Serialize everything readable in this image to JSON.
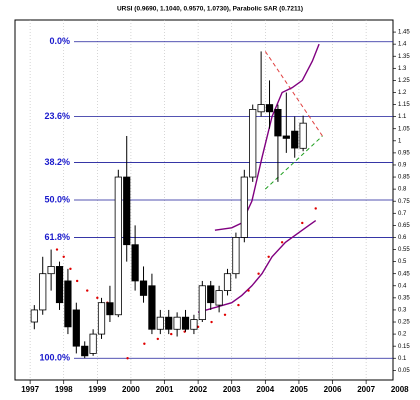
{
  "chart_data": {
    "type": "candlestick",
    "title": "URSI (0.9690, 1.1040, 0.9570, 1.0730), Parabolic SAR (0.7211)",
    "xlim": [
      1996.55,
      2007.8
    ],
    "xticks": [
      1997,
      1998,
      1999,
      2000,
      2001,
      2002,
      2003,
      2004,
      2005,
      2006,
      2007,
      2008
    ],
    "ylim": [
      0.01,
      1.5
    ],
    "yticks": [
      0.05,
      0.1,
      0.15,
      0.2,
      0.25,
      0.3,
      0.35,
      0.4,
      0.45,
      0.5,
      0.55,
      0.6,
      0.65,
      0.7,
      0.75,
      0.8,
      0.85,
      0.9,
      0.95,
      1.0,
      1.05,
      1.1,
      1.15,
      1.2,
      1.25,
      1.3,
      1.35,
      1.4,
      1.45
    ],
    "grid": true,
    "x": [
      1997.125,
      1997.375,
      1997.625,
      1997.875,
      1998.125,
      1998.375,
      1998.625,
      1998.875,
      1999.125,
      1999.375,
      1999.625,
      1999.875,
      2000.125,
      2000.375,
      2000.625,
      2000.875,
      2001.125,
      2001.375,
      2001.625,
      2001.875,
      2002.125,
      2002.375,
      2002.625,
      2002.875,
      2003.125,
      2003.375,
      2003.625,
      2003.875,
      2004.125,
      2004.375,
      2004.625,
      2004.875,
      2005.125
    ],
    "open": [
      0.25,
      0.3,
      0.45,
      0.48,
      0.42,
      0.3,
      0.15,
      0.12,
      0.2,
      0.33,
      0.28,
      0.85,
      0.57,
      0.42,
      0.4,
      0.22,
      0.27,
      0.22,
      0.27,
      0.22,
      0.26,
      0.4,
      0.32,
      0.38,
      0.45,
      0.6,
      0.85,
      1.12,
      1.15,
      1.13,
      1.02,
      1.04,
      0.969
    ],
    "high": [
      0.32,
      0.52,
      0.55,
      0.5,
      0.47,
      0.33,
      0.17,
      0.22,
      0.35,
      0.4,
      0.88,
      1.02,
      0.65,
      0.48,
      0.45,
      0.3,
      0.3,
      0.29,
      0.3,
      0.28,
      0.42,
      0.42,
      0.4,
      0.47,
      0.62,
      0.88,
      1.15,
      1.37,
      1.25,
      1.15,
      1.2,
      1.1,
      1.104
    ],
    "low": [
      0.22,
      0.28,
      0.38,
      0.3,
      0.2,
      0.12,
      0.1,
      0.11,
      0.18,
      0.25,
      0.27,
      0.5,
      0.38,
      0.33,
      0.2,
      0.2,
      0.2,
      0.19,
      0.21,
      0.2,
      0.25,
      0.3,
      0.29,
      0.36,
      0.43,
      0.58,
      0.83,
      1.1,
      1.05,
      0.83,
      0.95,
      0.93,
      0.957
    ],
    "close": [
      0.3,
      0.45,
      0.48,
      0.33,
      0.23,
      0.15,
      0.11,
      0.2,
      0.33,
      0.28,
      0.85,
      0.57,
      0.42,
      0.36,
      0.22,
      0.27,
      0.22,
      0.27,
      0.22,
      0.26,
      0.4,
      0.33,
      0.38,
      0.45,
      0.6,
      0.85,
      1.13,
      1.15,
      1.12,
      1.02,
      1.01,
      0.97,
      1.073
    ],
    "lines": [
      {
        "color": "#800080",
        "x": [
          2002.5,
          2003.0,
          2003.3,
          2003.6,
          2003.9,
          2004.2,
          2004.5,
          2004.8,
          2005.1,
          2005.4,
          2005.6
        ],
        "values": [
          0.63,
          0.64,
          0.66,
          0.75,
          0.93,
          1.1,
          1.2,
          1.22,
          1.25,
          1.33,
          1.4
        ]
      },
      {
        "color": "#800080",
        "x": [
          2002.0,
          2002.5,
          2003.0,
          2003.3,
          2003.6,
          2003.9,
          2004.2,
          2004.6,
          2005.0,
          2005.3,
          2005.5
        ],
        "values": [
          0.29,
          0.31,
          0.33,
          0.36,
          0.4,
          0.45,
          0.52,
          0.58,
          0.62,
          0.65,
          0.67
        ]
      }
    ],
    "sar": {
      "color": "#e00000",
      "x": [
        1997.8,
        1998.0,
        1998.2,
        1998.4,
        1998.7,
        1999.0,
        1999.3,
        1999.9,
        2000.4,
        2000.8,
        2001.2,
        2001.6,
        2002.0,
        2002.4,
        2002.8,
        2003.2,
        2003.5,
        2003.8,
        2004.1,
        2004.5,
        2005.1,
        2005.5
      ],
      "values": [
        0.55,
        0.52,
        0.47,
        0.42,
        0.38,
        0.35,
        0.33,
        0.1,
        0.16,
        0.18,
        0.2,
        0.21,
        0.23,
        0.25,
        0.28,
        0.32,
        0.38,
        0.45,
        0.52,
        0.58,
        0.66,
        0.72
      ]
    },
    "trendlines": [
      {
        "color": "#e04040",
        "x": [
          2004.0,
          2005.7
        ],
        "values": [
          1.37,
          1.02
        ]
      },
      {
        "color": "#20a020",
        "x": [
          2004.0,
          2005.7
        ],
        "values": [
          0.8,
          1.02
        ]
      }
    ],
    "fib_levels": [
      {
        "label": "0.0%",
        "value": 1.41
      },
      {
        "label": "23.6%",
        "value": 1.101
      },
      {
        "label": "38.2%",
        "value": 0.91
      },
      {
        "label": "50.0%",
        "value": 0.755
      },
      {
        "label": "61.8%",
        "value": 0.6
      },
      {
        "label": "100.0%",
        "value": 0.1
      }
    ]
  }
}
